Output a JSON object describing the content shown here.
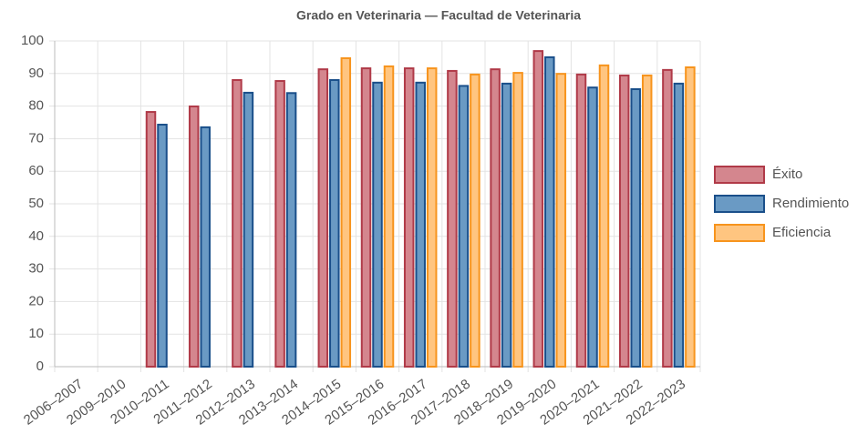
{
  "chart_data": {
    "type": "bar",
    "title": "Grado en Veterinaria — Facultad de Veterinaria",
    "categories": [
      "2006–2007",
      "2009–2010",
      "2010–2011",
      "2011–2012",
      "2012–2013",
      "2013–2014",
      "2014–2015",
      "2015–2016",
      "2016–2017",
      "2017–2018",
      "2018–2019",
      "2019–2020",
      "2020–2021",
      "2021–2022",
      "2022–2023"
    ],
    "series": [
      {
        "name": "Éxito",
        "color": "#d4868e",
        "values": [
          null,
          null,
          78.2,
          79.9,
          88.0,
          87.7,
          91.3,
          91.6,
          91.6,
          90.8,
          91.3,
          96.9,
          89.7,
          89.4,
          91.1
        ]
      },
      {
        "name": "Rendimiento",
        "color": "#6a9ac4",
        "values": [
          null,
          null,
          74.3,
          73.5,
          84.1,
          84.0,
          88.0,
          87.2,
          87.2,
          86.2,
          86.9,
          95.0,
          85.7,
          85.2,
          86.9
        ]
      },
      {
        "name": "Eficiencia",
        "color": "#ffc580",
        "values": [
          null,
          null,
          null,
          null,
          null,
          null,
          94.7,
          92.2,
          91.6,
          89.7,
          90.2,
          89.9,
          92.5,
          89.4,
          91.9
        ]
      }
    ],
    "ylim": [
      0,
      100
    ],
    "yticks": [
      0,
      10,
      20,
      30,
      40,
      50,
      60,
      70,
      80,
      90,
      100
    ],
    "grid": true,
    "legend": "right"
  }
}
